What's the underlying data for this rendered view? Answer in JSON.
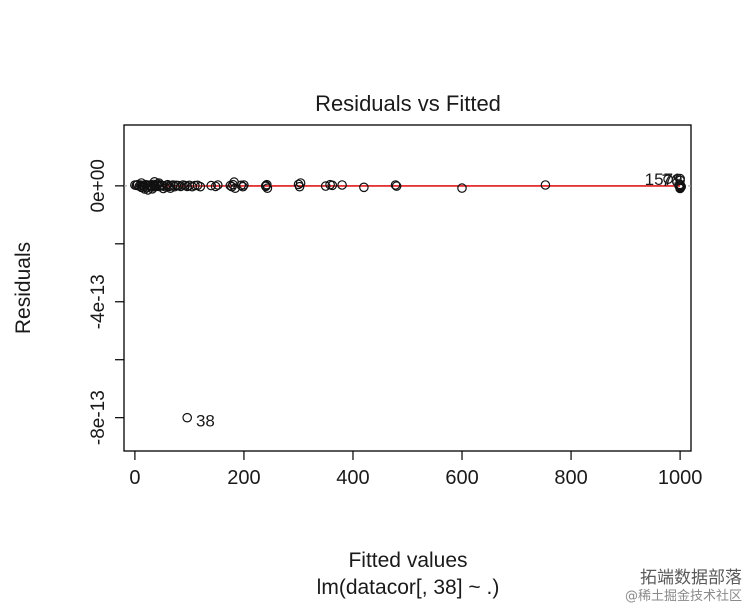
{
  "chart_data": {
    "type": "scatter",
    "title": "Residuals vs Fitted",
    "xlabel": "Fitted values",
    "xlabel2": "lm(datacor[, 38] ~ .)",
    "ylabel": "Residuals",
    "xlim": [
      -20,
      1020
    ],
    "ylim": [
      -9.15e-13,
      2.1e-13
    ],
    "xticks": [
      0,
      200,
      400,
      600,
      800,
      1000
    ],
    "xtick_labels": [
      "0",
      "200",
      "400",
      "600",
      "800",
      "1000"
    ],
    "yticks": [
      0,
      -2e-13,
      -4e-13,
      -6e-13,
      -8e-13
    ],
    "ytick_labels": [
      "0e+00",
      "",
      "-4e-13",
      "",
      "-8e-13"
    ],
    "zero_line": true,
    "points": [
      {
        "x": 0,
        "y": 3e-15
      },
      {
        "x": 3,
        "y": 2e-15
      },
      {
        "x": 5,
        "y": 4e-15
      },
      {
        "x": 8,
        "y": -1e-15
      },
      {
        "x": 10,
        "y": 3e-15
      },
      {
        "x": 12,
        "y": -5e-15
      },
      {
        "x": 14,
        "y": 1e-15
      },
      {
        "x": 16,
        "y": 2e-15
      },
      {
        "x": 18,
        "y": -3e-15
      },
      {
        "x": 20,
        "y": 4e-15
      },
      {
        "x": 22,
        "y": -6e-15
      },
      {
        "x": 24,
        "y": 1e-15
      },
      {
        "x": 26,
        "y": 3e-15
      },
      {
        "x": 28,
        "y": -2e-15
      },
      {
        "x": 30,
        "y": 2e-15
      },
      {
        "x": 32,
        "y": -4e-15
      },
      {
        "x": 34,
        "y": 5e-15
      },
      {
        "x": 36,
        "y": 1e-15
      },
      {
        "x": 38,
        "y": -3e-15
      },
      {
        "x": 40,
        "y": 2e-15
      },
      {
        "x": 42,
        "y": 6e-15
      },
      {
        "x": 45,
        "y": -2e-15
      },
      {
        "x": 48,
        "y": 3e-15
      },
      {
        "x": 50,
        "y": 1e-15
      },
      {
        "x": 55,
        "y": -3e-15
      },
      {
        "x": 58,
        "y": 2e-15
      },
      {
        "x": 60,
        "y": 4e-15
      },
      {
        "x": 63,
        "y": -2e-15
      },
      {
        "x": 66,
        "y": 1e-15
      },
      {
        "x": 70,
        "y": 3e-15
      },
      {
        "x": 73,
        "y": -3e-15
      },
      {
        "x": 76,
        "y": 2e-15
      },
      {
        "x": 80,
        "y": 1e-15
      },
      {
        "x": 84,
        "y": -2e-15
      },
      {
        "x": 88,
        "y": 3e-15
      },
      {
        "x": 92,
        "y": 1e-15
      },
      {
        "x": 96,
        "y": -2e-15
      },
      {
        "x": 100,
        "y": 2e-15
      },
      {
        "x": 105,
        "y": -3e-15
      },
      {
        "x": 110,
        "y": 1e-15
      },
      {
        "x": 115,
        "y": 2e-15
      },
      {
        "x": 120,
        "y": -3e-15
      },
      {
        "x": 24,
        "y": -1.4e-14
      },
      {
        "x": 18,
        "y": -1.1e-14
      },
      {
        "x": 32,
        "y": -1e-14
      },
      {
        "x": 36,
        "y": 1.4e-14
      },
      {
        "x": 52,
        "y": -9e-15
      },
      {
        "x": 12,
        "y": 1e-14
      },
      {
        "x": 65,
        "y": -8e-15
      },
      {
        "x": 44,
        "y": 1e-14
      },
      {
        "x": 140,
        "y": 1e-15
      },
      {
        "x": 148,
        "y": -2e-15
      },
      {
        "x": 152,
        "y": 3e-15
      },
      {
        "x": 175,
        "y": 1e-15
      },
      {
        "x": 178,
        "y": -3e-15
      },
      {
        "x": 180,
        "y": 4e-15
      },
      {
        "x": 182,
        "y": 1.3e-14
      },
      {
        "x": 184,
        "y": -8e-15
      },
      {
        "x": 195,
        "y": 2e-15
      },
      {
        "x": 198,
        "y": -3e-15
      },
      {
        "x": 200,
        "y": 3e-15
      },
      {
        "x": 240,
        "y": 1e-15
      },
      {
        "x": 240,
        "y": -2e-15
      },
      {
        "x": 242,
        "y": 4e-15
      },
      {
        "x": 243,
        "y": -8e-15
      },
      {
        "x": 300,
        "y": 5e-15
      },
      {
        "x": 302,
        "y": -3e-15
      },
      {
        "x": 304,
        "y": 1e-14
      },
      {
        "x": 350,
        "y": -1e-15
      },
      {
        "x": 358,
        "y": 4e-15
      },
      {
        "x": 362,
        "y": 2e-15
      },
      {
        "x": 380,
        "y": 3e-15
      },
      {
        "x": 420,
        "y": -5e-15
      },
      {
        "x": 478,
        "y": 3e-15
      },
      {
        "x": 480,
        "y": -1e-15
      },
      {
        "x": 600,
        "y": -7.8e-15
      },
      {
        "x": 753,
        "y": 3e-15
      },
      {
        "x": 1000,
        "y": 5e-15
      },
      {
        "x": 1000,
        "y": 3e-15
      },
      {
        "x": 1000,
        "y": 0.0
      },
      {
        "x": 1000,
        "y": -2e-15
      },
      {
        "x": 1000,
        "y": -4e-15
      },
      {
        "x": 1000,
        "y": -6e-15
      },
      {
        "x": 1000,
        "y": -9e-15
      },
      {
        "x": 998,
        "y": 1e-15
      },
      {
        "x": 1002,
        "y": -3e-15
      },
      {
        "x": 1000,
        "y": 2.5e-14
      },
      {
        "x": 978,
        "y": 2.3e-14
      },
      {
        "x": 1000,
        "y": 1.9e-14
      },
      {
        "x": 96,
        "y": -8e-13
      }
    ],
    "annotations": [
      {
        "text": "1579",
        "x": 935,
        "y": 2.4e-14,
        "anchor": "start"
      },
      {
        "text": "76",
        "x": 966,
        "y": 2e-14,
        "anchor": "start"
      },
      {
        "text": "38",
        "x": 112,
        "y": -8.1e-13,
        "anchor": "start"
      }
    ],
    "smooth_line": {
      "color": "#e31a1c",
      "x": [
        0,
        100,
        200,
        300,
        400,
        500,
        600,
        700,
        800,
        900,
        1000
      ],
      "y": [
        -5e-16,
        -5e-16,
        0.0,
        0.0,
        0.0,
        0.0,
        0.0,
        0.0,
        0.0,
        0.0,
        0.0
      ]
    }
  },
  "watermark": {
    "line1": "拓端数据部落",
    "line2": "@稀土掘金技术社区"
  }
}
